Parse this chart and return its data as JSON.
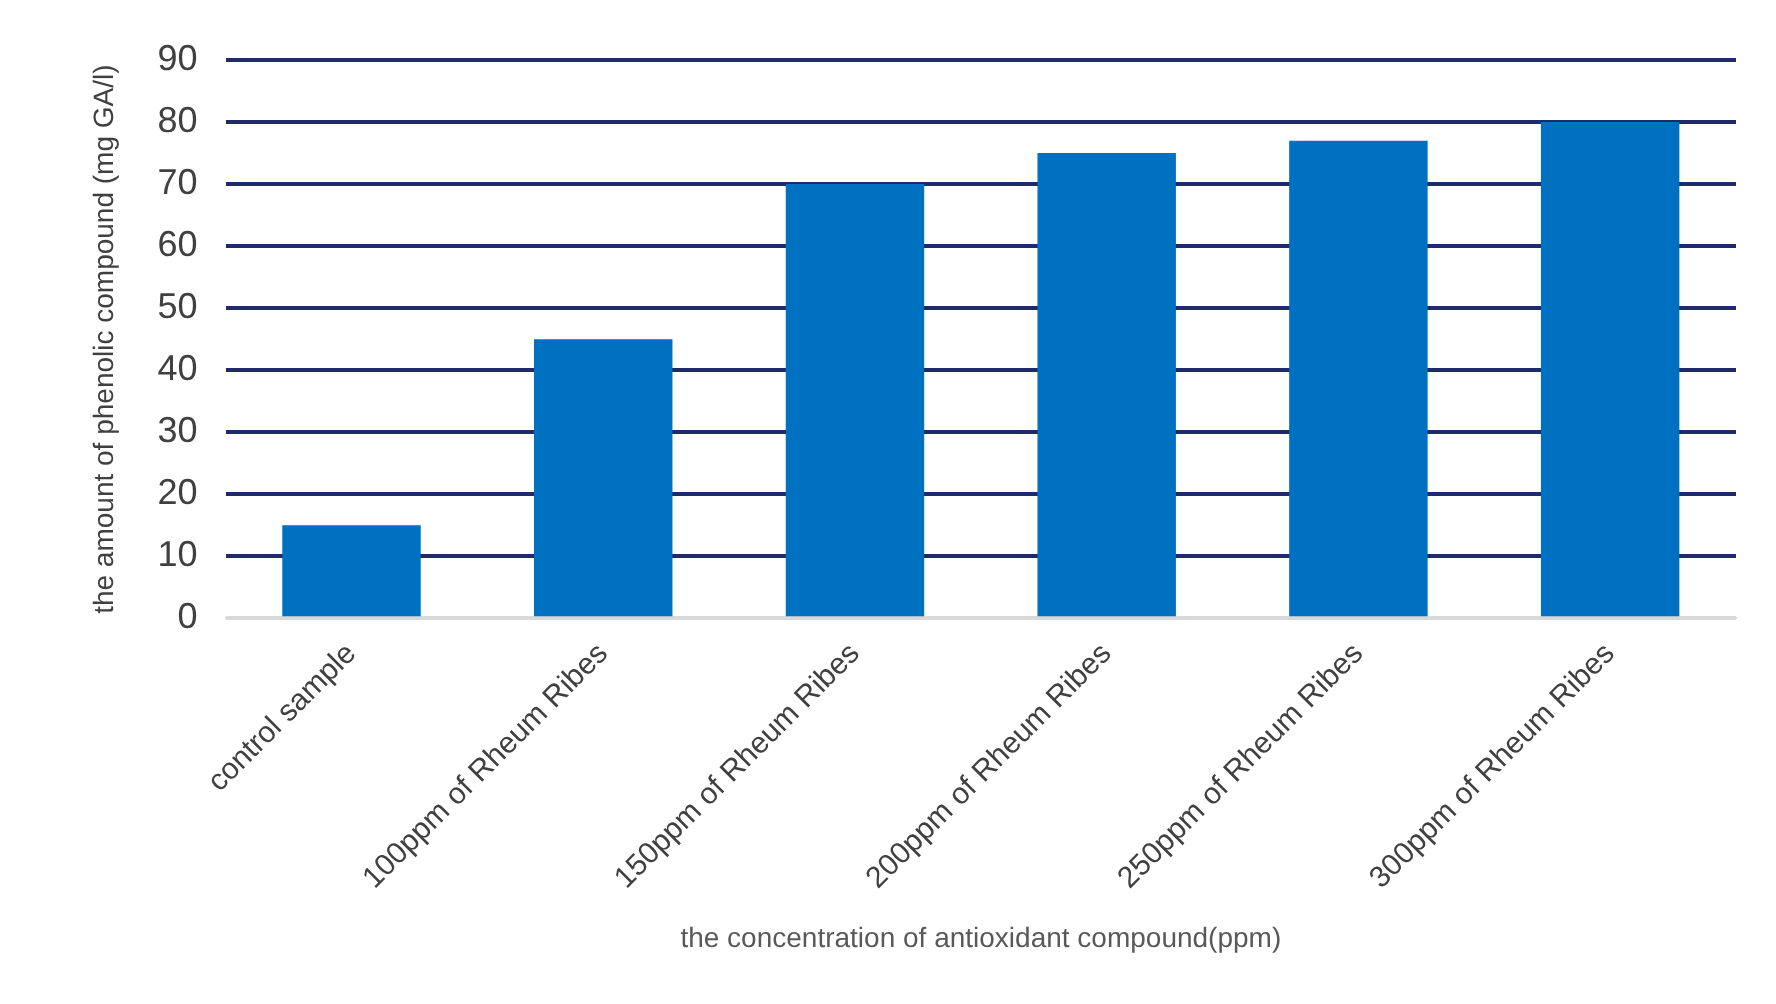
{
  "chart_data": {
    "type": "bar",
    "xlabel": "the concentration of antioxidant compound(ppm)",
    "ylabel": "the amount of phenolic compound (mg GA/l)",
    "categories": [
      "control sample",
      "100ppm of Rheum Ribes",
      "150ppm of Rheum Ribes",
      "200ppm of Rheum Ribes",
      "250ppm of Rheum Ribes",
      "300ppm of Rheum Ribes"
    ],
    "values": [
      15,
      45,
      70,
      75,
      77,
      80
    ],
    "color": "#0070c0",
    "ylim": [
      0,
      90
    ],
    "yticks": [
      0,
      10,
      20,
      30,
      40,
      50,
      60,
      70,
      80,
      90
    ],
    "grid": "y",
    "legend": false
  }
}
